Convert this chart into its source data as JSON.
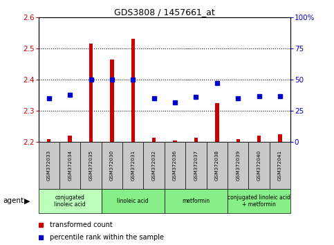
{
  "title": "GDS3808 / 1457661_at",
  "samples": [
    "GSM372033",
    "GSM372034",
    "GSM372035",
    "GSM372030",
    "GSM372031",
    "GSM372032",
    "GSM372036",
    "GSM372037",
    "GSM372038",
    "GSM372039",
    "GSM372040",
    "GSM372041"
  ],
  "red_values": [
    2.21,
    2.22,
    2.515,
    2.465,
    2.53,
    2.215,
    2.205,
    2.215,
    2.325,
    2.21,
    2.22,
    2.225
  ],
  "blue_values": [
    35,
    38,
    50,
    50,
    50,
    35,
    32,
    36,
    47,
    35,
    37,
    37
  ],
  "ylim_left": [
    2.2,
    2.6
  ],
  "ylim_right": [
    0,
    100
  ],
  "yticks_left": [
    2.2,
    2.3,
    2.4,
    2.5,
    2.6
  ],
  "yticks_right": [
    0,
    25,
    50,
    75,
    100
  ],
  "ytick_labels_right": [
    "0",
    "25",
    "50",
    "75",
    "100%"
  ],
  "group_labels": [
    "conjugated\nlinoleic acid",
    "linoleic acid",
    "metformin",
    "conjugated linoleic acid\n+ metformin"
  ],
  "group_starts": [
    0,
    3,
    6,
    9
  ],
  "group_ends": [
    3,
    6,
    9,
    12
  ],
  "group_colors": [
    "#bbffbb",
    "#88ee88",
    "#88ee88",
    "#88ee88"
  ],
  "red_color": "#cc0000",
  "blue_color": "#0000cc",
  "sample_bg_color": "#c8c8c8",
  "legend_red_label": "transformed count",
  "legend_blue_label": "percentile rank within the sample",
  "agent_label": "agent"
}
